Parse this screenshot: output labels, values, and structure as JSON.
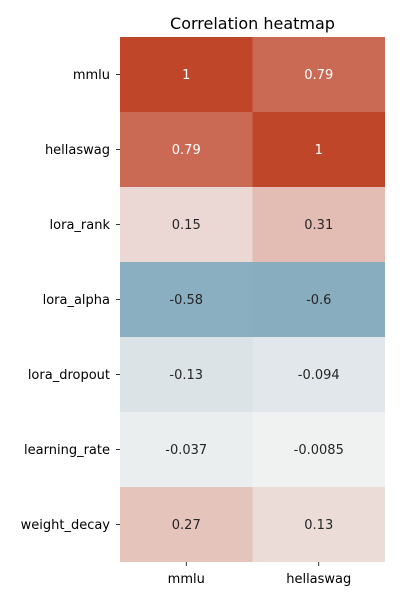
{
  "chart_data": {
    "type": "heatmap",
    "title": "Correlation heatmap",
    "x_categories": [
      "mmlu",
      "hellaswag"
    ],
    "y_categories": [
      "mmlu",
      "hellaswag",
      "lora_rank",
      "lora_alpha",
      "lora_dropout",
      "learning_rate",
      "weight_decay"
    ],
    "values": [
      [
        1,
        0.79
      ],
      [
        0.79,
        1
      ],
      [
        0.15,
        0.31
      ],
      [
        -0.58,
        -0.6
      ],
      [
        -0.13,
        -0.094
      ],
      [
        -0.037,
        -0.0085
      ],
      [
        0.27,
        0.13
      ]
    ],
    "value_labels": [
      [
        "1",
        "0.79"
      ],
      [
        "0.79",
        "1"
      ],
      [
        "0.15",
        "0.31"
      ],
      [
        "-0.58",
        "-0.6"
      ],
      [
        "-0.13",
        "-0.094"
      ],
      [
        "-0.037",
        "-0.0085"
      ],
      [
        "0.27",
        "0.13"
      ]
    ],
    "color_scale": {
      "type": "diverging",
      "vmin": -1,
      "vmax": 1,
      "negative_color": "#3f7f9c",
      "center_color": "#f2f2f2",
      "positive_color": "#c0462a"
    },
    "grid": false,
    "legend": "none",
    "xlabel": "",
    "ylabel": ""
  }
}
